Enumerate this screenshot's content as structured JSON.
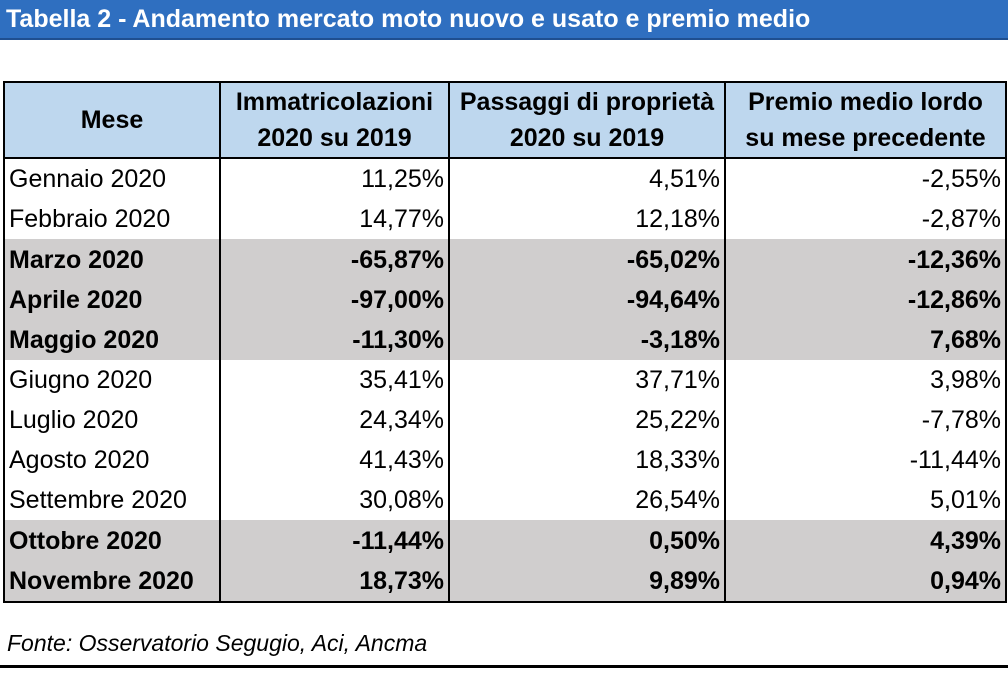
{
  "title": "Tabella 2 - Andamento mercato moto nuovo e usato e premio medio",
  "table": {
    "headers": [
      {
        "line1": "Mese",
        "line2": ""
      },
      {
        "line1": "Immatricolazioni",
        "line2": "2020 su 2019"
      },
      {
        "line1": "Passaggi di proprietà",
        "line2": "2020 su 2019"
      },
      {
        "line1": "Premio medio lordo",
        "line2": "su mese precedente"
      }
    ],
    "rows": [
      {
        "month": "Gennaio 2020",
        "immatricolazioni": "11,25%",
        "passaggi": "4,51%",
        "premio": "-2,55%",
        "highlight": false
      },
      {
        "month": "Febbraio 2020",
        "immatricolazioni": "14,77%",
        "passaggi": "12,18%",
        "premio": "-2,87%",
        "highlight": false
      },
      {
        "month": "Marzo 2020",
        "immatricolazioni": "-65,87%",
        "passaggi": "-65,02%",
        "premio": "-12,36%",
        "highlight": true
      },
      {
        "month": "Aprile 2020",
        "immatricolazioni": "-97,00%",
        "passaggi": "-94,64%",
        "premio": "-12,86%",
        "highlight": true
      },
      {
        "month": "Maggio 2020",
        "immatricolazioni": "-11,30%",
        "passaggi": "-3,18%",
        "premio": "7,68%",
        "highlight": true
      },
      {
        "month": "Giugno 2020",
        "immatricolazioni": "35,41%",
        "passaggi": "37,71%",
        "premio": "3,98%",
        "highlight": false
      },
      {
        "month": "Luglio 2020",
        "immatricolazioni": "24,34%",
        "passaggi": "25,22%",
        "premio": "-7,78%",
        "highlight": false
      },
      {
        "month": "Agosto 2020",
        "immatricolazioni": "41,43%",
        "passaggi": "18,33%",
        "premio": "-11,44%",
        "highlight": false
      },
      {
        "month": "Settembre 2020",
        "immatricolazioni": "30,08%",
        "passaggi": "26,54%",
        "premio": "5,01%",
        "highlight": false
      },
      {
        "month": "Ottobre 2020",
        "immatricolazioni": "-11,44%",
        "passaggi": "0,50%",
        "premio": "4,39%",
        "highlight": true
      },
      {
        "month": "Novembre 2020",
        "immatricolazioni": "18,73%",
        "passaggi": "9,89%",
        "premio": "0,94%",
        "highlight": true
      }
    ]
  },
  "source": "Fonte: Osservatorio Segugio, Aci, Ancma",
  "colors": {
    "title_bar": "#2f6fc0",
    "header_fill": "#bed7ee",
    "highlight_fill": "#d0cece"
  }
}
